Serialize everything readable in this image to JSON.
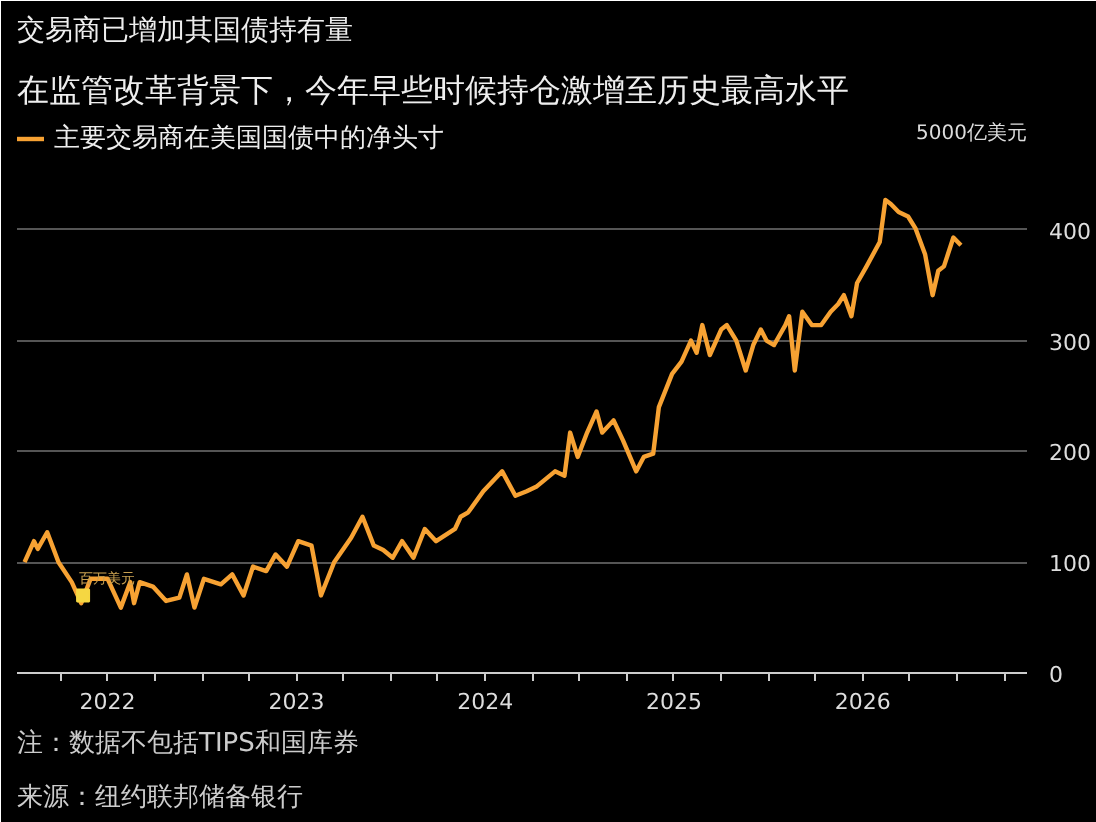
{
  "chart_data": {
    "type": "line",
    "title": "交易商已增加其国债持有量",
    "subtitle": "在监管改革背景下，今年早些时候持仓激增至历史最高水平",
    "ylabel": "5000亿美元",
    "annotations": [
      {
        "text": "百万美元",
        "x": 2021.87,
        "y": 70
      },
      "注：数据不包括TIPS和国库券",
      "来源：纽约联邦储备银行"
    ],
    "x": [
      2021.56,
      2021.61,
      2021.63,
      2021.68,
      2021.74,
      2021.81,
      2021.86,
      2021.91,
      2022.0,
      2022.07,
      2022.12,
      2022.14,
      2022.17,
      2022.24,
      2022.31,
      2022.38,
      2022.42,
      2022.46,
      2022.51,
      2022.6,
      2022.66,
      2022.72,
      2022.77,
      2022.84,
      2022.89,
      2022.95,
      2023.01,
      2023.08,
      2023.13,
      2023.2,
      2023.29,
      2023.35,
      2023.41,
      2023.46,
      2023.51,
      2023.56,
      2023.62,
      2023.68,
      2023.74,
      2023.84,
      2023.87,
      2023.91,
      2023.99,
      2024.09,
      2024.16,
      2024.22,
      2024.27,
      2024.32,
      2024.37,
      2024.42,
      2024.45,
      2024.49,
      2024.54,
      2024.59,
      2024.62,
      2024.68,
      2024.73,
      2024.8,
      2024.84,
      2024.89,
      2024.92,
      2024.99,
      2025.04,
      2025.09,
      2025.12,
      2025.15,
      2025.19,
      2025.25,
      2025.28,
      2025.33,
      2025.38,
      2025.42,
      2025.46,
      2025.49,
      2025.53,
      2025.59,
      2025.61,
      2025.64,
      2025.68,
      2025.73,
      2025.78,
      2025.83,
      2025.87,
      2025.9,
      2025.94,
      2025.97,
      2026.02,
      2026.09,
      2026.12,
      2026.15,
      2026.19,
      2026.24,
      2026.28,
      2026.33,
      2026.37,
      2026.4,
      2026.43,
      2026.48,
      2026.52
    ],
    "series": [
      {
        "name": "主要交易商在美国国债中的净头寸",
        "color": "#f7a233",
        "values": [
          100,
          119,
          112,
          127,
          100,
          82,
          63,
          85,
          85,
          59,
          82,
          63,
          82,
          78,
          65,
          68,
          89,
          59,
          85,
          80,
          89,
          70,
          96,
          92,
          107,
          96,
          119,
          115,
          70,
          100,
          122,
          141,
          115,
          111,
          104,
          119,
          104,
          130,
          119,
          130,
          141,
          145,
          164,
          182,
          160,
          164,
          168,
          175,
          182,
          178,
          217,
          195,
          217,
          236,
          217,
          228,
          210,
          182,
          195,
          198,
          240,
          270,
          281,
          300,
          289,
          314,
          287,
          310,
          314,
          300,
          273,
          296,
          310,
          300,
          296,
          314,
          322,
          273,
          326,
          314,
          314,
          326,
          333,
          341,
          322,
          352,
          367,
          389,
          427,
          423,
          416,
          412,
          401,
          378,
          341,
          363,
          367,
          393,
          386
        ]
      }
    ],
    "xlim": [
      2021.52,
      2026.87
    ],
    "ylim": [
      0,
      500
    ],
    "xticks": [
      {
        "value": 2021.75,
        "label": null
      },
      {
        "value": 2022,
        "label": "2022"
      },
      {
        "value": 2022.25,
        "label": null
      },
      {
        "value": 2022.5,
        "label": null
      },
      {
        "value": 2022.75,
        "label": null
      },
      {
        "value": 2023,
        "label": "2023"
      },
      {
        "value": 2023.25,
        "label": null
      },
      {
        "value": 2023.5,
        "label": null
      },
      {
        "value": 2023.75,
        "label": null
      },
      {
        "value": 2024,
        "label": "2024"
      },
      {
        "value": 2024.25,
        "label": null
      },
      {
        "value": 2024.5,
        "label": null
      },
      {
        "value": 2024.75,
        "label": null
      },
      {
        "value": 2025,
        "label": "2025"
      },
      {
        "value": 2025.25,
        "label": null
      },
      {
        "value": 2025.5,
        "label": null
      },
      {
        "value": 2025.75,
        "label": null
      },
      {
        "value": 2026,
        "label": "2026"
      },
      {
        "value": 2026.25,
        "label": null
      },
      {
        "value": 2026.5,
        "label": null
      },
      {
        "value": 2026.75,
        "label": null
      }
    ],
    "yticks": [
      0,
      100,
      200,
      300,
      400,
      {
        "value": 500,
        "label": null
      }
    ],
    "grid": "y",
    "legend": "top left",
    "line_style": "solid"
  }
}
